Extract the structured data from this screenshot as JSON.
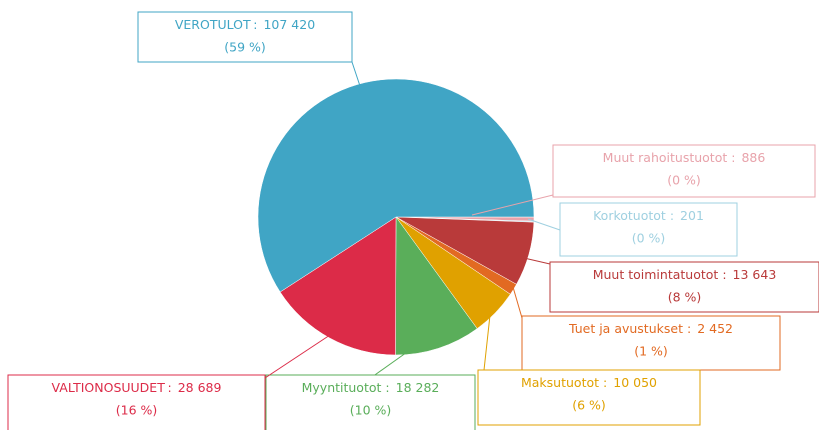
{
  "chart_data": {
    "type": "pie",
    "categories": [
      "Muut rahoitustuotot",
      "Korkotuotot",
      "Muut toimintatuotot",
      "Tuet ja avustukset",
      "Maksutuotot",
      "Myyntituotot",
      "VALTIONOSUUDET",
      "VEROTULOT"
    ],
    "values": [
      886,
      201,
      13643,
      2452,
      10050,
      18282,
      28689,
      107420
    ],
    "value_labels": [
      "886",
      "201",
      "13 643",
      "2 452",
      "10 050",
      "18 282",
      "28 689",
      "107 420"
    ],
    "percents": [
      0,
      0,
      8,
      1,
      6,
      10,
      16,
      59
    ],
    "percent_labels": [
      "(0 %)",
      "(0 %)",
      "(8 %)",
      "(1 %)",
      "(6 %)",
      "(10 %)",
      "(16 %)",
      "(59 %)"
    ],
    "separator": ":",
    "colors": [
      "#e8a3ab",
      "#9fd0e0",
      "#b93a3a",
      "#e26a22",
      "#e0a100",
      "#5aae5a",
      "#dc2b48",
      "#40a5c5"
    ]
  }
}
